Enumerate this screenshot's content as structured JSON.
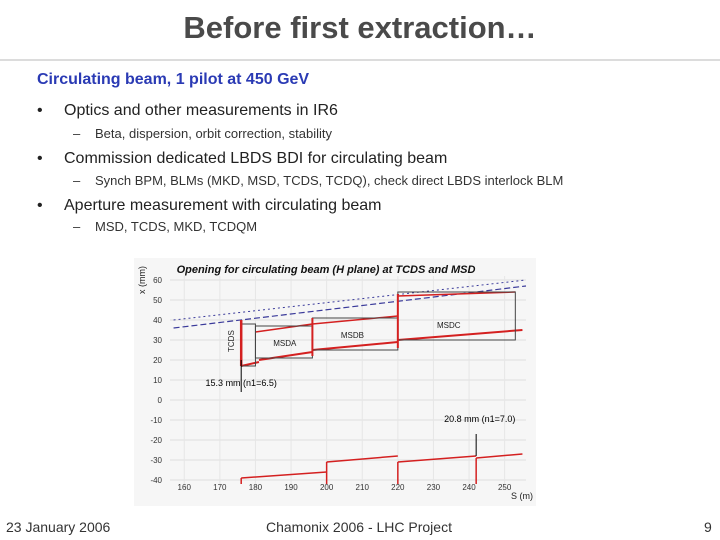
{
  "slide": {
    "title": "Before first extraction…",
    "subtitle": "Circulating beam, 1 pilot at 450 GeV",
    "bullets": [
      {
        "text": "Optics and other measurements in IR6",
        "sub": "Beta, dispersion, orbit correction, stability"
      },
      {
        "text": "Commission dedicated LBDS BDI for circulating beam",
        "sub": "Synch BPM, BLMs (MKD, MSD, TCDS, TCDQ), check direct LBDS interlock BLM"
      },
      {
        "text": "Aperture measurement with circulating beam",
        "sub": "MSD, TCDS, MKD, TCDQM"
      }
    ],
    "footer": {
      "date": "23 January 2006",
      "center": "Chamonix 2006 - LHC Project",
      "page": "9"
    }
  },
  "chart_data": {
    "type": "line",
    "title": "Opening for circulating beam (H plane) at TCDS and MSD",
    "xlabel": "S (m)",
    "ylabel": "x (mm)",
    "x_ticks": [
      160,
      170,
      180,
      190,
      200,
      210,
      220,
      230,
      240,
      250
    ],
    "y_ticks": [
      60,
      50,
      40,
      30,
      20,
      10,
      0,
      -10,
      -20,
      -30,
      -40
    ],
    "xlim": [
      156,
      256
    ],
    "ylim": [
      -44,
      62
    ],
    "element_labels": [
      "TCDS",
      "MSDA",
      "MSDB",
      "MSDC"
    ],
    "annotations": [
      {
        "text": "15.3 mm (n1=6.5)",
        "x": 176,
        "y": 7
      },
      {
        "text": "20.8 mm (n1=7.0)",
        "x": 243,
        "y": -11
      }
    ],
    "colors": {
      "aperture": "#d42020",
      "envelope": "#3a3a9a",
      "annotation": "#000000"
    }
  }
}
